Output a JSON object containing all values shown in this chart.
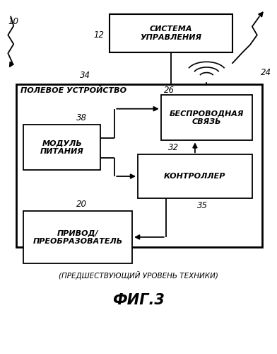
{
  "bg_color": "#ffffff",
  "fig_width": 3.92,
  "fig_height": 5.0,
  "dpi": 100,
  "label_10": "10",
  "label_12": "12",
  "label_24": "24",
  "label_34": "34",
  "label_26": "26",
  "label_38": "38",
  "label_32": "32",
  "label_20": "20",
  "label_35": "35",
  "text_control_system": "СИСТЕМА\nУПРАВЛЕНИЯ",
  "text_field_device": "ПОЛЕВОЕ УСТРОЙСТВО",
  "text_wireless": "БЕСПРОВОДНАЯ\nСВЯЗЬ",
  "text_power_module": "МОДУЛЬ\nПИТАНИЯ",
  "text_controller": "КОНТРОЛЛЕР",
  "text_drive": "ПРИВОД/\nПРЕОБРАЗОВАТЕЛЬ",
  "text_prior_art": "(ПРЕДШЕСТВУЮЩИЙ УРОВЕНЬ ТЕХНИКИ)",
  "text_fig": "ФИГ.3"
}
